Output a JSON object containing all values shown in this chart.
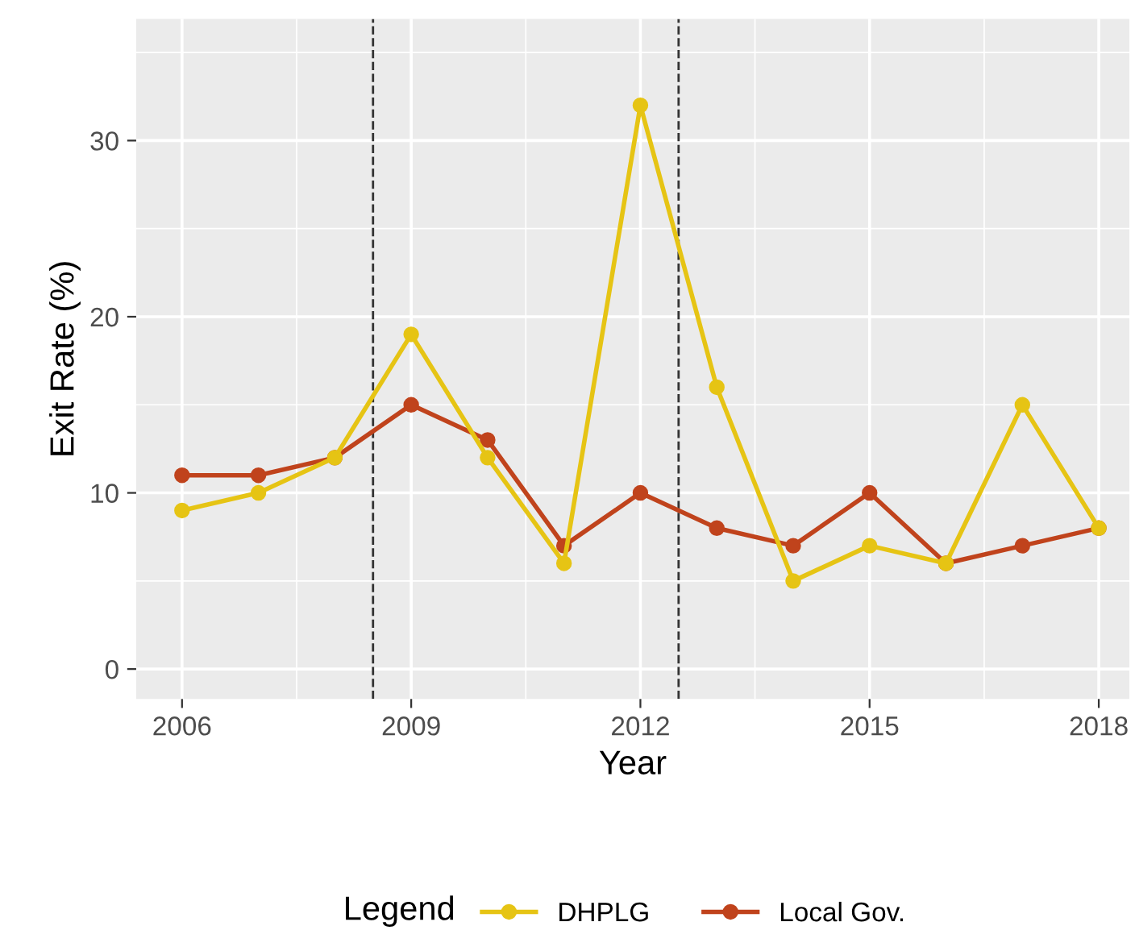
{
  "chart_data": {
    "type": "line",
    "xlabel": "Year",
    "ylabel": "Exit Rate (%)",
    "legend_title": "Legend",
    "x": [
      2006,
      2007,
      2008,
      2009,
      2010,
      2011,
      2012,
      2013,
      2014,
      2015,
      2016,
      2017,
      2018
    ],
    "series": [
      {
        "name": "DHPLG",
        "color": "#e6c414",
        "values": [
          9,
          10,
          12,
          19,
          12,
          6,
          32,
          16,
          5,
          7,
          6,
          15,
          8
        ]
      },
      {
        "name": "Local Gov.",
        "color": "#c0431c",
        "values": [
          11,
          11,
          12,
          15,
          13,
          7,
          10,
          8,
          7,
          10,
          6,
          7,
          8
        ]
      }
    ],
    "xlim": [
      2005.4,
      2018.4
    ],
    "ylim": [
      -1.7,
      36.9
    ],
    "xticks": [
      2006,
      2009,
      2012,
      2015,
      2018
    ],
    "yticks": [
      0,
      10,
      20,
      30
    ],
    "ref_lines": [
      {
        "axis": "x",
        "value": 2008.5,
        "color": "#333333",
        "line_style": "dashed"
      },
      {
        "axis": "x",
        "value": 2012.5,
        "color": "#333333",
        "line_style": "dashed"
      }
    ],
    "grid": true,
    "legend": "bottom",
    "marker": "circle",
    "line_style": "solid"
  }
}
